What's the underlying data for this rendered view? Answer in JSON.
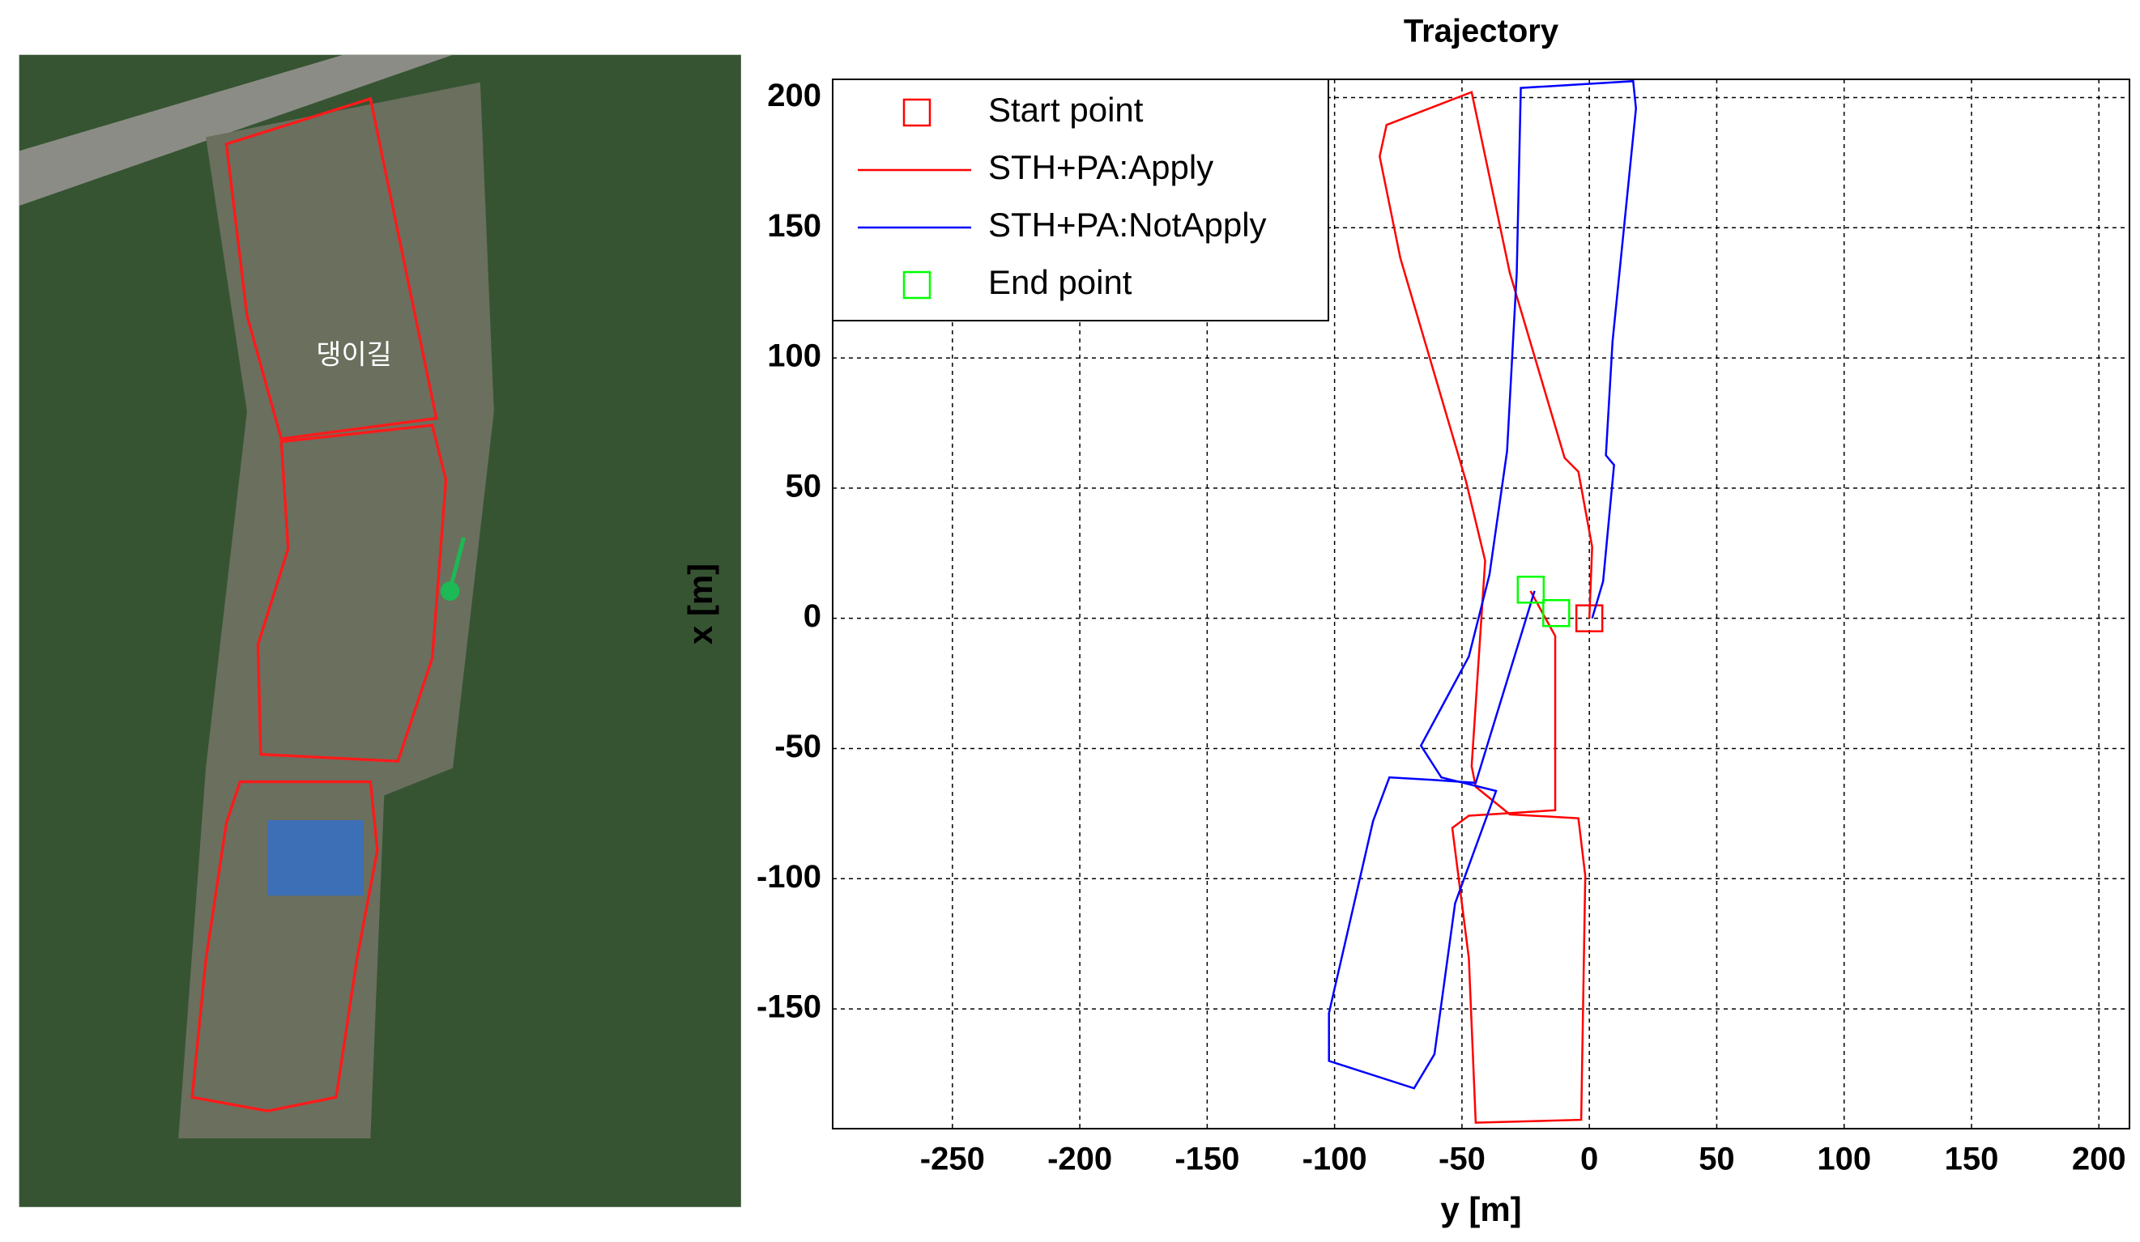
{
  "map": {
    "label": "댕이길"
  },
  "chart_data": {
    "type": "line",
    "title": "Trajectory",
    "x_label": "y [m]",
    "y_label": "x [m]",
    "xlim": [
      -297,
      212
    ],
    "ylim": [
      -196,
      207
    ],
    "xticks": [
      -250,
      -200,
      -150,
      -100,
      -50,
      0,
      50,
      100,
      150,
      200
    ],
    "yticks": [
      -150,
      -100,
      -50,
      0,
      50,
      100,
      150,
      200
    ],
    "grid": true,
    "legend": "upper left",
    "series": [
      {
        "name": "Start point",
        "color": "#ff0000",
        "style": "marker",
        "x": [
          0
        ],
        "values": [
          0
        ]
      },
      {
        "name": "STH+PA:Apply",
        "color": "#ff0000",
        "style": "line",
        "x": [
          0,
          1.1,
          -4.3,
          -9.7,
          -31.2,
          -46.2,
          -79.6,
          -82.3,
          -74.2,
          -48.4,
          -40.9,
          -46.2,
          -44.6,
          -31.2,
          -4.3,
          -1.6,
          -3.2,
          -44.6,
          -47.3,
          -53.8,
          -47.3,
          -13.4,
          -13.4,
          -23.1
        ],
        "values": [
          0,
          27.4,
          56.3,
          61.6,
          132.6,
          202.1,
          189.5,
          177.4,
          138.4,
          52.6,
          22.1,
          -56.8,
          -64.7,
          -75.3,
          -76.8,
          -98.9,
          -192.6,
          -193.7,
          -130.5,
          -80.5,
          -75.8,
          -73.7,
          -6.8,
          10.5
        ]
      },
      {
        "name": "STH+PA:NotApply",
        "color": "#0000ff",
        "style": "line",
        "x": [
          1.1,
          5.4,
          9.7,
          6.5,
          9.1,
          18.3,
          17.2,
          -26.9,
          -28.5,
          -32.3,
          -39.2,
          -47.3,
          -66.1,
          -58.1,
          -36.6,
          -52.7,
          -60.8,
          -68.8,
          -102.2,
          -102.2,
          -84.9,
          -78.5,
          -60.8,
          -44.6,
          -21.5
        ],
        "values": [
          0,
          14.2,
          58.9,
          62.6,
          106.3,
          195.8,
          206.3,
          203.7,
          132.6,
          64.2,
          16.8,
          -14.7,
          -48.9,
          -61.1,
          -66.3,
          -109.5,
          -167.4,
          -180.5,
          -170,
          -151.6,
          -77.9,
          -61.1,
          -62.1,
          -63.2,
          10.5
        ]
      },
      {
        "name": "End point",
        "color": "#00ff00",
        "style": "marker",
        "x": [
          -23,
          -13
        ],
        "values": [
          11,
          2
        ]
      }
    ]
  }
}
